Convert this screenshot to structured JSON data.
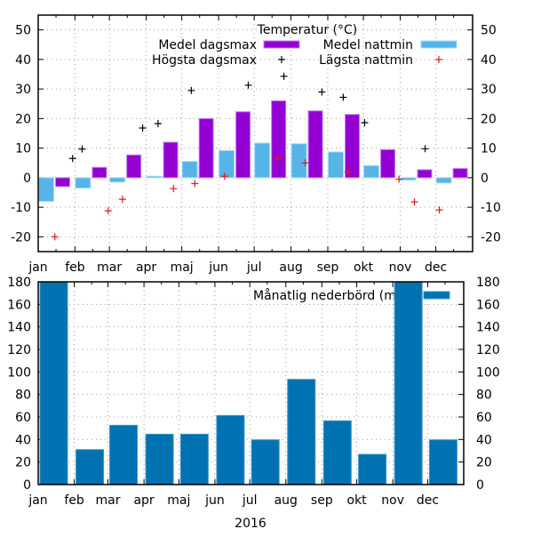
{
  "chart_data": [
    {
      "type": "bar",
      "title": "",
      "legend_title": "Temperatur (°C)",
      "legend_placement": "top-right",
      "grid": true,
      "xlabel": "",
      "ylabel": "",
      "ylim": [
        -25,
        55
      ],
      "yticks": [
        -20,
        -10,
        0,
        10,
        20,
        30,
        40,
        50
      ],
      "categories": [
        "jan",
        "feb",
        "mar",
        "apr",
        "maj",
        "jun",
        "jul",
        "aug",
        "sep",
        "okt",
        "nov",
        "dec"
      ],
      "series": [
        {
          "name": "Medel nattmin",
          "type": "bar",
          "color": "#56b4e9",
          "values": [
            -8,
            -3.5,
            -1.5,
            0.5,
            5.5,
            9.2,
            11.7,
            11.5,
            8.7,
            4.1,
            -0.8,
            -1.8
          ]
        },
        {
          "name": "Medel dagsmax",
          "type": "bar",
          "color": "#9400d3",
          "values": [
            -3,
            3.5,
            7.7,
            12,
            20,
            22.3,
            26,
            22.6,
            21.4,
            9.5,
            2.7,
            3.1
          ]
        },
        {
          "name": "Högsta dagsmax",
          "type": "scatter",
          "marker": "plus",
          "color": "#000000",
          "points": [
            [
              "2016-01-30",
              6.5
            ],
            [
              "2016-02-07",
              9.7
            ],
            [
              "2016-03-29",
              16.8
            ],
            [
              "2016-04-11",
              18.3
            ],
            [
              "2016-05-09",
              29.5
            ],
            [
              "2016-06-26",
              31.3
            ],
            [
              "2016-07-26",
              34.3
            ],
            [
              "2016-08-27",
              29
            ],
            [
              "2016-09-14",
              27.2
            ],
            [
              "2016-10-02",
              18.6
            ],
            [
              "2016-11-22",
              9.8
            ]
          ]
        },
        {
          "name": "Lägsta nattmin",
          "type": "scatter",
          "marker": "plus",
          "color": "#e41a1c",
          "points": [
            [
              "2016-01-15",
              -20
            ],
            [
              "2016-02-29",
              -11.2
            ],
            [
              "2016-03-12",
              -7.3
            ],
            [
              "2016-04-24",
              -3.7
            ],
            [
              "2016-05-12",
              -2
            ],
            [
              "2016-06-06",
              0.5
            ],
            [
              "2016-07-21",
              6.5
            ],
            [
              "2016-08-13",
              5
            ],
            [
              "2016-09-18",
              2
            ],
            [
              "2016-10-31",
              -0.5
            ],
            [
              "2016-11-13",
              -8.2
            ],
            [
              "2016-12-04",
              -10.9
            ]
          ]
        }
      ]
    },
    {
      "type": "bar",
      "title": "",
      "legend_placement": "top-right",
      "grid": true,
      "xlabel": "2016",
      "ylabel": "",
      "ylim": [
        0,
        180
      ],
      "yticks": [
        0,
        20,
        40,
        60,
        80,
        100,
        120,
        140,
        160,
        180
      ],
      "categories": [
        "jan",
        "feb",
        "mar",
        "apr",
        "maj",
        "jun",
        "jul",
        "aug",
        "sep",
        "okt",
        "nov",
        "dec"
      ],
      "series": [
        {
          "name": "Månatlig nederbörd (mm)",
          "color": "#0072b2",
          "values": [
            180,
            31,
            52.6,
            44.7,
            44.7,
            61.3,
            39.7,
            93.4,
            56.6,
            26.8,
            180,
            39.7
          ]
        }
      ]
    }
  ]
}
